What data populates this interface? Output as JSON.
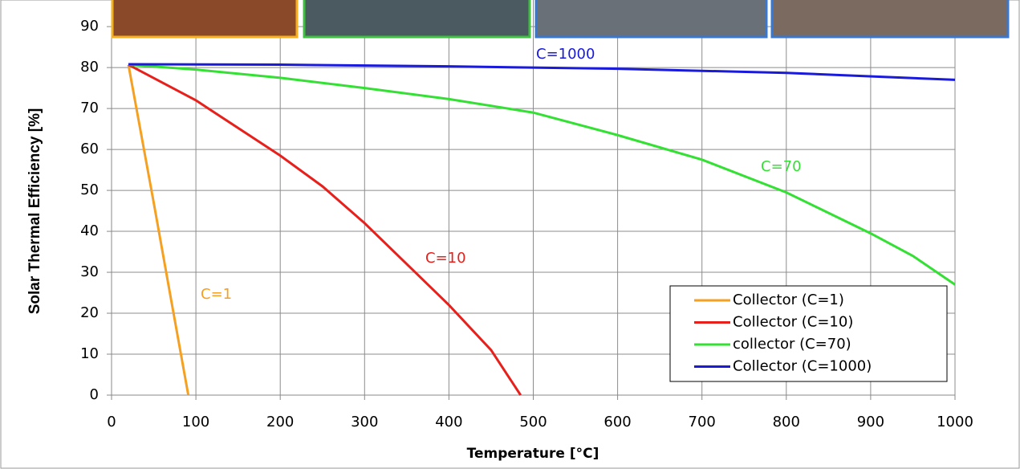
{
  "chart_data": {
    "type": "line",
    "xlabel": "Temperature [°C]",
    "ylabel": "Solar Thermal Efficiency [%]",
    "xlim": [
      0,
      1000
    ],
    "ylim": [
      0,
      96.5
    ],
    "xticks": [
      0,
      100,
      200,
      300,
      400,
      500,
      600,
      700,
      800,
      900,
      1000
    ],
    "yticks": [
      0,
      10,
      20,
      30,
      40,
      50,
      60,
      70,
      80,
      90
    ],
    "grid": true,
    "legend": "lower right",
    "series": [
      {
        "name": "Collector (C=1)",
        "color": "#f5a020",
        "x": [
          20,
          50,
          70,
          91
        ],
        "values": [
          80.7,
          47,
          24,
          0
        ]
      },
      {
        "name": "Collector (C=10)",
        "color": "#e8201c",
        "x": [
          20,
          100,
          200,
          250,
          300,
          350,
          400,
          450,
          485
        ],
        "values": [
          80.7,
          72,
          58.5,
          51,
          42,
          32,
          22,
          11,
          0
        ]
      },
      {
        "name": "collector (C=70)",
        "color": "#33e033",
        "x": [
          20,
          100,
          200,
          300,
          400,
          500,
          600,
          700,
          800,
          900,
          950,
          1000
        ],
        "values": [
          80.7,
          79.5,
          77.5,
          75,
          72.3,
          69,
          63.5,
          57.5,
          49.5,
          39.5,
          34,
          27
        ]
      },
      {
        "name": "Collector (C=1000)",
        "color": "#1a1adc",
        "x": [
          20,
          200,
          400,
          600,
          800,
          1000
        ],
        "values": [
          80.8,
          80.7,
          80.3,
          79.7,
          78.7,
          77
        ]
      }
    ],
    "annotations": [
      {
        "text": "C=1",
        "color": "#f5a020"
      },
      {
        "text": "C=10",
        "color": "#e8201c"
      },
      {
        "text": "C=70",
        "color": "#33e033"
      },
      {
        "text": "C=1000",
        "color": "#1a1adc"
      }
    ]
  }
}
